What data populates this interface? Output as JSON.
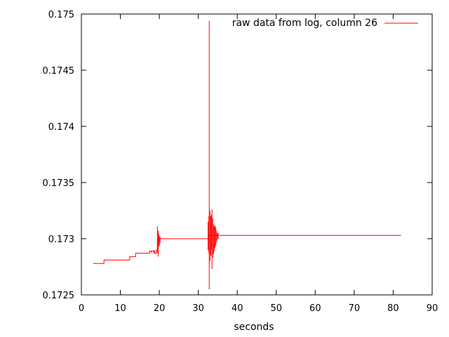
{
  "chart_data": {
    "type": "line",
    "title": "",
    "xlabel": "seconds",
    "ylabel": "",
    "xlim": [
      0,
      90
    ],
    "ylim": [
      0.1725,
      0.175
    ],
    "x_ticks": [
      0,
      10,
      20,
      30,
      40,
      50,
      60,
      70,
      80,
      90
    ],
    "y_ticks": [
      0.1725,
      0.173,
      0.1735,
      0.174,
      0.1745,
      0.175
    ],
    "y_tick_labels": [
      "0.1725",
      "0.173",
      "0.1735",
      "0.174",
      "0.1745",
      "0.175"
    ],
    "grid": false,
    "legend_position": "top-right",
    "color": "#ff0000",
    "series": [
      {
        "name": "raw data from log, column 26",
        "steps": [
          [
            3.0,
            0.17278
          ],
          [
            5.8,
            0.17278
          ],
          [
            5.8,
            0.17281
          ],
          [
            12.4,
            0.17281
          ],
          [
            12.4,
            0.17284
          ],
          [
            13.9,
            0.17284
          ],
          [
            13.9,
            0.17287
          ],
          [
            17.5,
            0.17287
          ],
          [
            17.5,
            0.17289
          ],
          [
            18.8,
            0.17289
          ],
          [
            18.8,
            0.17287
          ],
          [
            19.2,
            0.17287
          ],
          [
            19.2,
            0.1729
          ],
          [
            19.6,
            0.1729
          ],
          [
            19.6,
            0.173
          ],
          [
            32.6,
            0.173
          ],
          [
            32.6,
            0.17303
          ],
          [
            82.0,
            0.17303
          ]
        ],
        "spikes": [
          [
            18.0,
            0.17287,
            0.17289
          ],
          [
            18.6,
            0.17287,
            0.1729
          ],
          [
            19.5,
            0.17287,
            0.17311
          ],
          [
            19.7,
            0.17284,
            0.17307
          ],
          [
            19.9,
            0.17293,
            0.17304
          ],
          [
            20.0,
            0.17294,
            0.17302
          ],
          [
            20.2,
            0.17296,
            0.17302
          ],
          [
            32.5,
            0.1729,
            0.17315
          ],
          [
            32.7,
            0.17287,
            0.1732
          ],
          [
            32.8,
            0.17255,
            0.17494
          ],
          [
            33.0,
            0.1728,
            0.17325
          ],
          [
            33.2,
            0.17285,
            0.1732
          ],
          [
            33.4,
            0.1729,
            0.17322
          ],
          [
            33.5,
            0.17273,
            0.17326
          ],
          [
            33.7,
            0.17283,
            0.17318
          ],
          [
            33.9,
            0.17286,
            0.17313
          ],
          [
            34.1,
            0.17289,
            0.17311
          ],
          [
            34.3,
            0.17292,
            0.17312
          ],
          [
            34.5,
            0.17294,
            0.1731
          ],
          [
            34.7,
            0.17297,
            0.17307
          ],
          [
            34.9,
            0.17299,
            0.17305
          ],
          [
            35.1,
            0.173,
            0.17305
          ]
        ]
      }
    ]
  }
}
